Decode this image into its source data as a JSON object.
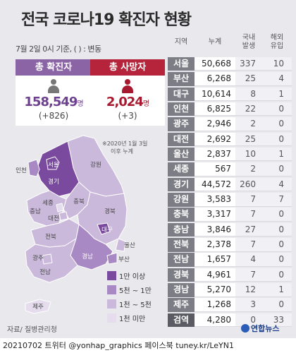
{
  "title": "전국 코로나19 확진자 현황",
  "date_note": "7월 2일 0시 기준, ( ) : 변동",
  "confirmed": {
    "label": "총 확진자",
    "value": "158,549",
    "unit": "명",
    "delta": "(+826)"
  },
  "deaths": {
    "label": "총 사망자",
    "value": "2,024",
    "unit": "명",
    "delta": "(+3)"
  },
  "map_note": [
    "※2020년 1월 3일",
    "이후 누계"
  ],
  "map_labels": [
    "강원",
    "인천",
    "서울",
    "경기",
    "충북",
    "세종",
    "충남",
    "대전",
    "경북",
    "전북",
    "대구",
    "울산",
    "부산",
    "경남",
    "광주",
    "전남",
    "제주"
  ],
  "legend": [
    {
      "label": "1만 이상",
      "color": "#7a4a9e"
    },
    {
      "label": "5천 ~ 1만",
      "color": "#a989c4"
    },
    {
      "label": "1천 ~ 5천",
      "color": "#cbb9dc"
    },
    {
      "label": "1천 미만",
      "color": "#e5dcee"
    }
  ],
  "table": {
    "headers": [
      "지역",
      "누계",
      "국내\n발생",
      "해외\n유입"
    ],
    "rows": [
      [
        "서울",
        "50,668",
        "337",
        "10"
      ],
      [
        "부산",
        "6,268",
        "25",
        "4"
      ],
      [
        "대구",
        "10,614",
        "8",
        "1"
      ],
      [
        "인천",
        "6,825",
        "22",
        "0"
      ],
      [
        "광주",
        "2,946",
        "2",
        "0"
      ],
      [
        "대전",
        "2,692",
        "25",
        "0"
      ],
      [
        "울산",
        "2,837",
        "10",
        "1"
      ],
      [
        "세종",
        "567",
        "2",
        "0"
      ],
      [
        "경기",
        "44,572",
        "260",
        "4"
      ],
      [
        "강원",
        "3,583",
        "7",
        "7"
      ],
      [
        "충북",
        "3,317",
        "7",
        "0"
      ],
      [
        "충남",
        "3,846",
        "27",
        "0"
      ],
      [
        "전북",
        "2,378",
        "7",
        "0"
      ],
      [
        "전남",
        "1,657",
        "4",
        "0"
      ],
      [
        "경북",
        "4,961",
        "7",
        "0"
      ],
      [
        "경남",
        "5,270",
        "12",
        "1"
      ],
      [
        "제주",
        "1,268",
        "3",
        "0"
      ],
      [
        "검역",
        "4,280",
        "0",
        "33"
      ]
    ]
  },
  "source": "자료/ 질병관리청",
  "logo": "연합뉴스",
  "footer": "20210702 트위터 @yonhap_graphics  페이스북 tuney.kr/LeYN1"
}
